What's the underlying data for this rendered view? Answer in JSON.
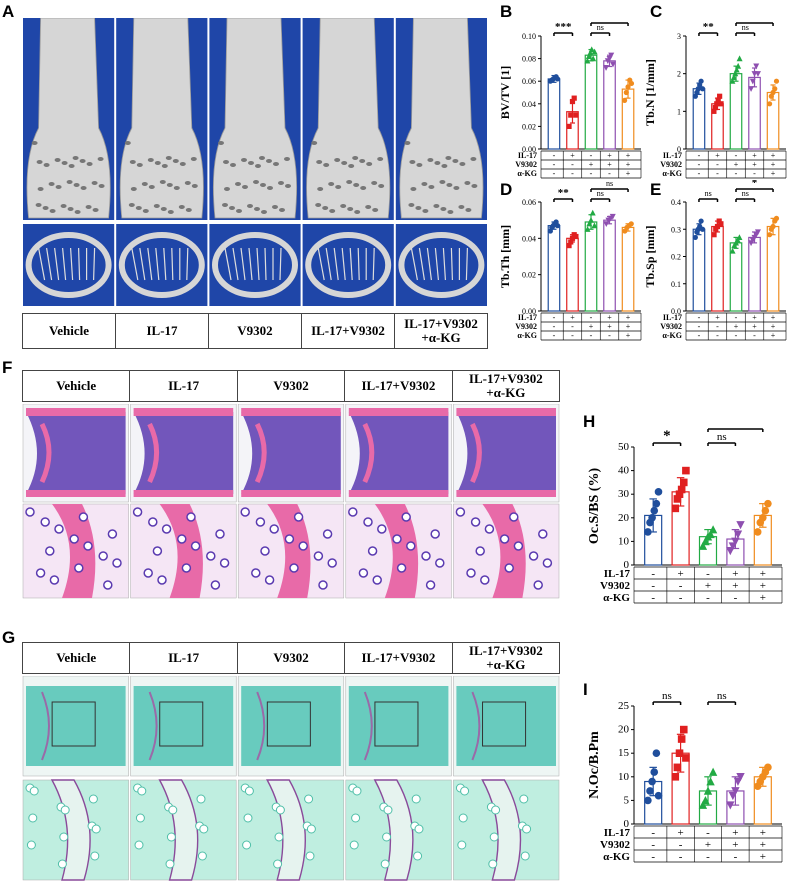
{
  "panel_letters": {
    "A": "A",
    "B": "B",
    "C": "C",
    "D": "D",
    "E": "E",
    "F": "F",
    "G": "G",
    "H": "H",
    "I": "I"
  },
  "group_labels": [
    "Vehicle",
    "IL-17",
    "V9302",
    "IL-17+V9302",
    "IL-17+V9302\n+α-KG"
  ],
  "factor_table": {
    "rows": [
      "IL-17",
      "V9302",
      "α-KG"
    ],
    "signs": [
      [
        "-",
        "+",
        "-",
        "+",
        "+"
      ],
      [
        "-",
        "-",
        "+",
        "+",
        "+"
      ],
      [
        "-",
        "-",
        "-",
        "-",
        "+"
      ]
    ]
  },
  "colors": {
    "vehicle": "#1f4e9c",
    "il17": "#e02020",
    "v9302": "#22aa44",
    "il17v9302": "#8e4fb0",
    "akg": "#f08c1e",
    "microct_bg": "#1f46a8",
    "bone": "#d6d6d6",
    "he_pink": "#e86aa8",
    "he_purple": "#5a3ab0",
    "trap_bg": "#46c0b0"
  },
  "chart_data": [
    {
      "panel": "B",
      "type": "bar",
      "ylabel": "BV/TV [1]",
      "ylim": [
        0,
        0.1
      ],
      "yticks": [
        "0.00",
        "0.02",
        "0.04",
        "0.06",
        "0.08",
        "0.10"
      ],
      "categories": [
        "Vehicle",
        "IL-17",
        "V9302",
        "IL-17+V9302",
        "IL-17+V9302+α-KG"
      ],
      "values": [
        0.062,
        0.033,
        0.083,
        0.078,
        0.053
      ],
      "errors": [
        0.003,
        0.01,
        0.005,
        0.005,
        0.008
      ],
      "points": [
        [
          0.06,
          0.061,
          0.062,
          0.063,
          0.064,
          0.062
        ],
        [
          0.02,
          0.03,
          0.042,
          0.045,
          0.03
        ],
        [
          0.078,
          0.082,
          0.085,
          0.088,
          0.08,
          0.086
        ],
        [
          0.072,
          0.078,
          0.08,
          0.083,
          0.075
        ],
        [
          0.043,
          0.05,
          0.055,
          0.061,
          0.058
        ]
      ],
      "brackets": [
        {
          "from": 0,
          "to": 1,
          "label": "***",
          "level": 1
        },
        {
          "from": 2,
          "to": 3,
          "label": "ns",
          "level": 1
        },
        {
          "from": 2,
          "to": 4,
          "label": "***",
          "level": 2
        }
      ]
    },
    {
      "panel": "C",
      "type": "bar",
      "ylabel": "Tb.N [1/mm]",
      "ylim": [
        0,
        3
      ],
      "yticks": [
        "0",
        "1",
        "2",
        "3"
      ],
      "categories": [
        "Vehicle",
        "IL-17",
        "V9302",
        "IL-17+V9302",
        "IL-17+V9302+α-KG"
      ],
      "values": [
        1.6,
        1.2,
        2.0,
        1.9,
        1.5
      ],
      "errors": [
        0.15,
        0.15,
        0.2,
        0.25,
        0.2
      ],
      "points": [
        [
          1.4,
          1.5,
          1.6,
          1.7,
          1.8,
          1.6
        ],
        [
          1.0,
          1.1,
          1.2,
          1.3,
          1.4,
          1.2
        ],
        [
          1.8,
          1.9,
          2.0,
          2.1,
          2.2,
          2.4
        ],
        [
          1.6,
          1.8,
          2.0,
          2.2,
          2.0
        ],
        [
          1.2,
          1.4,
          1.5,
          1.6,
          1.8
        ]
      ],
      "brackets": [
        {
          "from": 0,
          "to": 1,
          "label": "**",
          "level": 1
        },
        {
          "from": 2,
          "to": 3,
          "label": "ns",
          "level": 1
        },
        {
          "from": 2,
          "to": 4,
          "label": "**",
          "level": 2
        }
      ]
    },
    {
      "panel": "D",
      "type": "bar",
      "ylabel": "Tb.Th [mm]",
      "ylim": [
        0,
        0.06
      ],
      "yticks": [
        "0.00",
        "0.02",
        "0.04",
        "0.06"
      ],
      "categories": [
        "Vehicle",
        "IL-17",
        "V9302",
        "IL-17+V9302",
        "IL-17+V9302+α-KG"
      ],
      "values": [
        0.047,
        0.04,
        0.049,
        0.05,
        0.046
      ],
      "errors": [
        0.002,
        0.002,
        0.004,
        0.002,
        0.002
      ],
      "points": [
        [
          0.044,
          0.046,
          0.047,
          0.048,
          0.049,
          0.047
        ],
        [
          0.036,
          0.038,
          0.04,
          0.042,
          0.041
        ],
        [
          0.045,
          0.048,
          0.05,
          0.054,
          0.047
        ],
        [
          0.048,
          0.05,
          0.051,
          0.052
        ],
        [
          0.044,
          0.046,
          0.047,
          0.048
        ]
      ],
      "brackets": [
        {
          "from": 0,
          "to": 1,
          "label": "**",
          "level": 1
        },
        {
          "from": 2,
          "to": 3,
          "label": "ns",
          "level": 1
        },
        {
          "from": 2,
          "to": 4,
          "label": "ns",
          "level": 2
        }
      ]
    },
    {
      "panel": "E",
      "type": "bar",
      "ylabel": "Tb.Sp [mm]",
      "ylim": [
        0,
        0.4
      ],
      "yticks": [
        "0.0",
        "0.1",
        "0.2",
        "0.3",
        "0.4"
      ],
      "categories": [
        "Vehicle",
        "IL-17",
        "V9302",
        "IL-17+V9302",
        "IL-17+V9302+α-KG"
      ],
      "values": [
        0.3,
        0.31,
        0.25,
        0.27,
        0.31
      ],
      "errors": [
        0.02,
        0.02,
        0.02,
        0.02,
        0.03
      ],
      "points": [
        [
          0.27,
          0.29,
          0.3,
          0.31,
          0.33,
          0.3
        ],
        [
          0.28,
          0.3,
          0.31,
          0.33,
          0.32
        ],
        [
          0.22,
          0.24,
          0.25,
          0.26,
          0.27
        ],
        [
          0.25,
          0.26,
          0.27,
          0.28,
          0.29
        ],
        [
          0.28,
          0.3,
          0.31,
          0.33,
          0.34
        ]
      ],
      "brackets": [
        {
          "from": 0,
          "to": 1,
          "label": "ns",
          "level": 1
        },
        {
          "from": 2,
          "to": 3,
          "label": "ns",
          "level": 1
        },
        {
          "from": 2,
          "to": 4,
          "label": "*",
          "level": 2
        }
      ]
    },
    {
      "panel": "H",
      "type": "bar",
      "ylabel": "Oc.S/BS (%)",
      "ylim": [
        0,
        50
      ],
      "yticks": [
        "0",
        "10",
        "20",
        "30",
        "40",
        "50"
      ],
      "categories": [
        "Vehicle",
        "IL-17",
        "V9302",
        "IL-17+V9302",
        "IL-17+V9302+α-KG"
      ],
      "values": [
        21,
        31,
        12,
        11,
        21
      ],
      "errors": [
        7,
        6,
        3,
        4,
        5
      ],
      "points": [
        [
          14,
          18,
          20,
          23,
          26,
          31
        ],
        [
          24,
          28,
          30,
          32,
          35,
          40
        ],
        [
          8,
          10,
          12,
          13,
          15
        ],
        [
          6,
          8,
          10,
          13,
          17
        ],
        [
          14,
          18,
          20,
          23,
          26
        ]
      ],
      "brackets": [
        {
          "from": 0,
          "to": 1,
          "label": "*",
          "level": 1
        },
        {
          "from": 2,
          "to": 3,
          "label": "ns",
          "level": 1
        },
        {
          "from": 2,
          "to": 4,
          "label": "*",
          "level": 2
        }
      ]
    },
    {
      "panel": "I",
      "type": "bar",
      "ylabel": "N.Oc/B.Pm",
      "ylim": [
        0,
        25
      ],
      "yticks": [
        "0",
        "5",
        "10",
        "15",
        "20",
        "25"
      ],
      "categories": [
        "Vehicle",
        "IL-17",
        "V9302",
        "IL-17+V9302",
        "IL-17+V9302+α-KG"
      ],
      "values": [
        9,
        15,
        7,
        7,
        10
      ],
      "errors": [
        3,
        4,
        3,
        3,
        2
      ],
      "points": [
        [
          5,
          7,
          9,
          11,
          15,
          6
        ],
        [
          10,
          12,
          15,
          18,
          20,
          14
        ],
        [
          4,
          5,
          7,
          9,
          11
        ],
        [
          4,
          6,
          7,
          9,
          10
        ],
        [
          8,
          9,
          10,
          11,
          12
        ]
      ],
      "brackets": [
        {
          "from": 0,
          "to": 1,
          "label": "ns",
          "level": 1
        },
        {
          "from": 2,
          "to": 3,
          "label": "ns",
          "level": 1
        },
        {
          "from": 2,
          "to": 4,
          "label": "ns",
          "level": 2
        }
      ]
    }
  ]
}
